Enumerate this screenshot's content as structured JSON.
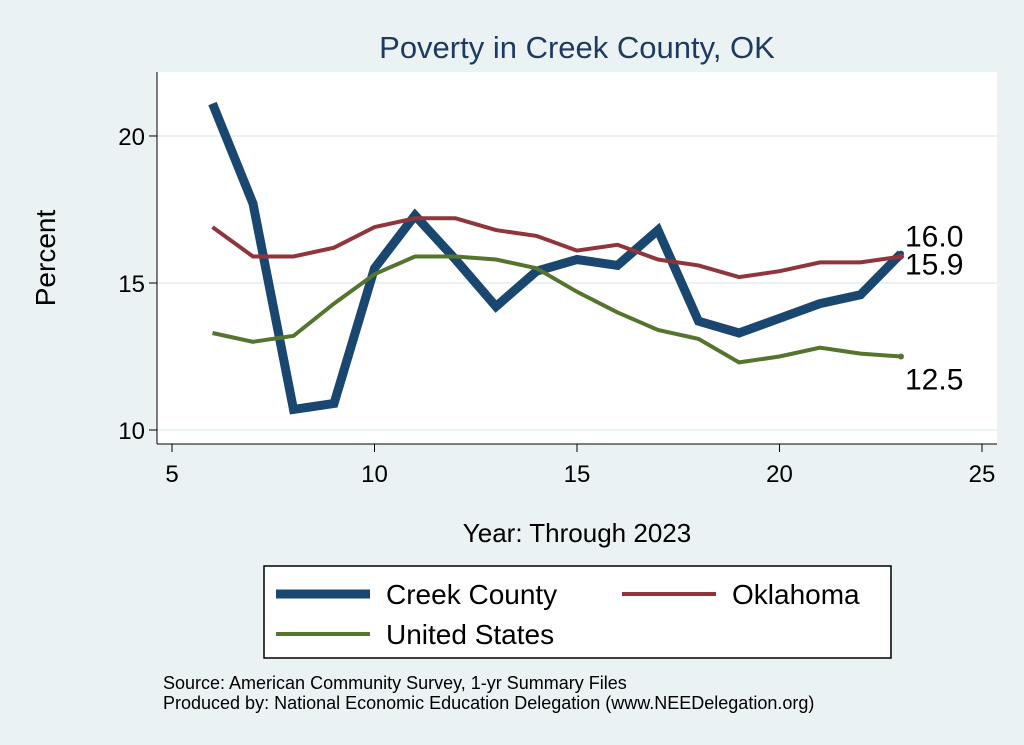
{
  "chart_data": {
    "type": "line",
    "title": "Poverty in Creek County, OK",
    "xlabel": "Year: Through 2023",
    "ylabel": "Percent",
    "xlim": [
      5,
      25
    ],
    "ylim": [
      10,
      21.7
    ],
    "x_ticks": [
      5,
      10,
      15,
      20,
      25
    ],
    "y_ticks": [
      10,
      15,
      20
    ],
    "grid": true,
    "legend_position": "bottom",
    "series": [
      {
        "name": "Creek County",
        "color": "#1a476f",
        "x": [
          6,
          7,
          8,
          9,
          10,
          11,
          12,
          13,
          14,
          15,
          16,
          17,
          18,
          19,
          20,
          21,
          22,
          23
        ],
        "values": [
          21.1,
          17.7,
          10.7,
          10.9,
          15.5,
          17.3,
          15.8,
          14.2,
          15.4,
          15.8,
          15.6,
          16.8,
          13.7,
          13.3,
          13.8,
          14.3,
          14.6,
          16.0
        ],
        "end_label": "16.0"
      },
      {
        "name": "Oklahoma",
        "color": "#90353b",
        "x": [
          6,
          7,
          8,
          9,
          10,
          11,
          12,
          13,
          14,
          15,
          16,
          17,
          18,
          19,
          20,
          21,
          22,
          23
        ],
        "values": [
          16.9,
          15.9,
          15.9,
          16.2,
          16.9,
          17.2,
          17.2,
          16.8,
          16.6,
          16.1,
          16.3,
          15.8,
          15.6,
          15.2,
          15.4,
          15.7,
          15.7,
          15.9
        ],
        "end_label": "15.9"
      },
      {
        "name": "United States",
        "color": "#55752f",
        "x": [
          6,
          7,
          8,
          9,
          10,
          11,
          12,
          13,
          14,
          15,
          16,
          17,
          18,
          19,
          20,
          21,
          22,
          23
        ],
        "values": [
          13.3,
          13.0,
          13.2,
          14.3,
          15.3,
          15.9,
          15.9,
          15.8,
          15.5,
          14.7,
          14.0,
          13.4,
          13.1,
          12.3,
          12.5,
          12.8,
          12.6,
          12.5
        ],
        "end_label": "12.5"
      }
    ],
    "notes": [
      "Source: American Community Survey, 1-yr Summary Files",
      "Produced by: National Economic Education Delegation (www.NEEDelegation.org)"
    ]
  }
}
